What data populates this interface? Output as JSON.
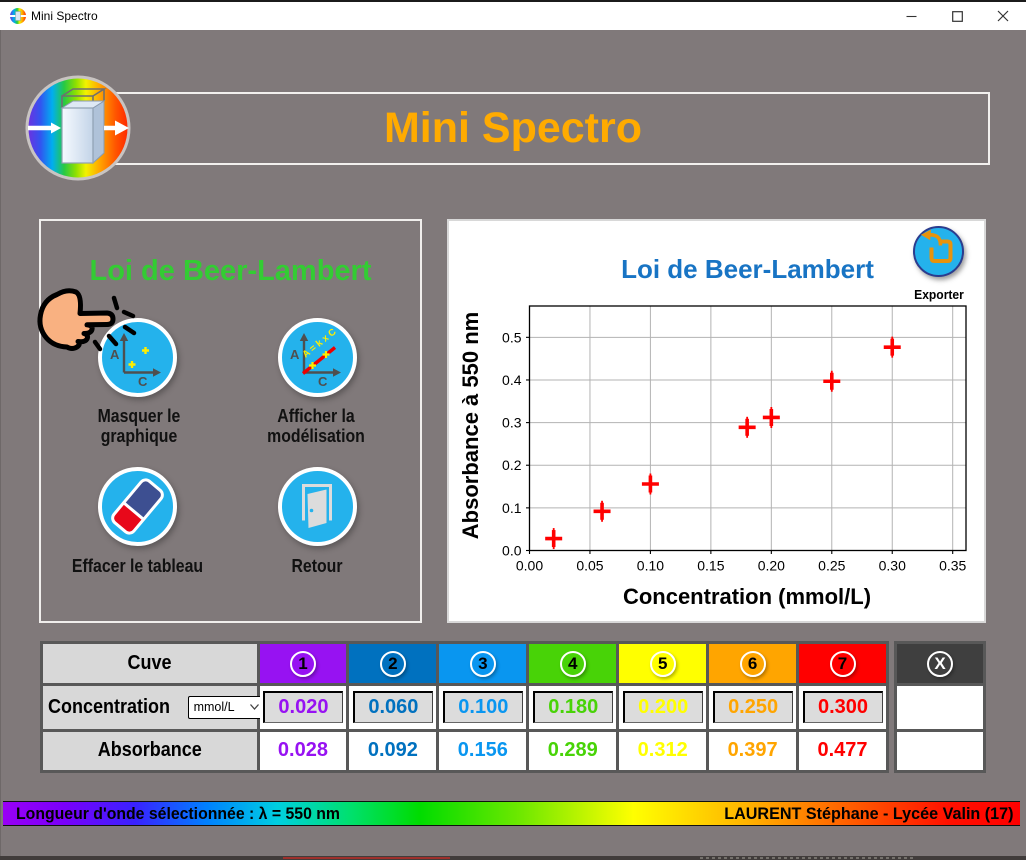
{
  "window": {
    "title": "Mini Spectro",
    "controls": {
      "minimize": "minimize",
      "maximize": "maximize",
      "close": "close"
    }
  },
  "header": {
    "title": "Mini Spectro"
  },
  "left_panel": {
    "title": "Loi de Beer-Lambert",
    "buttons": [
      {
        "id": "hide-graph",
        "label": "Masquer le\ngraphique",
        "icon": "graph-axes-icon"
      },
      {
        "id": "show-model",
        "label": "Afficher la\nmodélisation",
        "icon": "graph-model-icon",
        "icon_formula": "A = k x C"
      },
      {
        "id": "clear-table",
        "label": "Effacer le tableau",
        "icon": "eraser-icon"
      },
      {
        "id": "back",
        "label": "Retour",
        "icon": "door-icon"
      }
    ],
    "axes_icon_labels": {
      "y": "A",
      "x": "C"
    }
  },
  "chart_data": {
    "type": "scatter",
    "title": "Loi de Beer-Lambert",
    "xlabel": "Concentration (mmol/L)",
    "ylabel": "Absorbance à 550 nm",
    "x": [
      0.02,
      0.06,
      0.1,
      0.18,
      0.2,
      0.25,
      0.3
    ],
    "y": [
      0.028,
      0.092,
      0.156,
      0.289,
      0.312,
      0.397,
      0.477
    ],
    "xlim": [
      0,
      0.361
    ],
    "ylim": [
      0,
      0.5735
    ],
    "xticks": [
      "0.00",
      "0.05",
      "0.10",
      "0.15",
      "0.20",
      "0.25",
      "0.30",
      "0.35"
    ],
    "yticks": [
      "0.0",
      "0.1",
      "0.2",
      "0.3",
      "0.4",
      "0.5"
    ],
    "grid": true,
    "legend": "none",
    "marker": "+",
    "marker_color": "#FF0000",
    "title_color": "#1874C4"
  },
  "export": {
    "label": "Exporter"
  },
  "table": {
    "row_headers": [
      "Cuve",
      "Concentration",
      "Absorbance"
    ],
    "unit_label": "mmol/L",
    "columns": [
      {
        "num": "1",
        "color": "#9712F2",
        "concentration": "0.020",
        "absorbance": "0.028"
      },
      {
        "num": "2",
        "color": "#0071BF",
        "concentration": "0.060",
        "absorbance": "0.092"
      },
      {
        "num": "3",
        "color": "#0996F0",
        "concentration": "0.100",
        "absorbance": "0.156"
      },
      {
        "num": "4",
        "color": "#48D307",
        "concentration": "0.180",
        "absorbance": "0.289"
      },
      {
        "num": "5",
        "color": "#FFFF00",
        "concentration": "0.200",
        "absorbance": "0.312"
      },
      {
        "num": "6",
        "color": "#FFA500",
        "concentration": "0.250",
        "absorbance": "0.397"
      },
      {
        "num": "7",
        "color": "#FF0000",
        "concentration": "0.300",
        "absorbance": "0.477"
      }
    ],
    "clear_column": {
      "num": "X",
      "color": "#3F3F3F",
      "text_color": "#FFFFFF"
    }
  },
  "statusbar": {
    "left": "Longueur d'onde sélectionnée : λ = 550 nm",
    "right": "LAURENT Stéphane - Lycée Valin (17)"
  }
}
